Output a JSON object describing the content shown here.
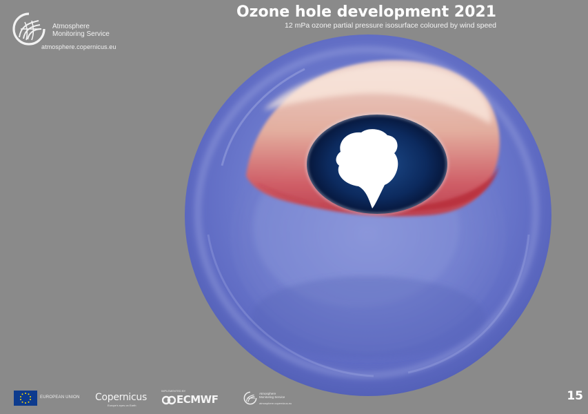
{
  "header": {
    "logo_line1": "Atmosphere",
    "logo_line2": "Monitoring Service",
    "url": "atmosphere.copernicus.eu",
    "title": "Ozone hole development 2021",
    "subtitle": "12 mPa ozone partial pressure isosurface coloured by wind speed"
  },
  "visual": {
    "globe_icon": "ozone-isosurface-globe",
    "continent": "Antarctica"
  },
  "colors": {
    "background": "#8a8a8a",
    "isosurface_low": "#5b68c4",
    "isosurface_high": "#c8343b",
    "ocean": "#0a1f47"
  },
  "footer": {
    "eu_label": "EUROPEAN UNION",
    "copernicus_word": "Copernicus",
    "copernicus_sub": "Europe's eyes on Earth",
    "ecmwf_above": "IMPLEMENTED BY",
    "ecmwf_word": "ECMWF",
    "small_logo_line1": "Atmosphere",
    "small_logo_line2": "Monitoring Service",
    "small_logo_url": "atmosphere.copernicus.eu",
    "frame_number": "15"
  }
}
